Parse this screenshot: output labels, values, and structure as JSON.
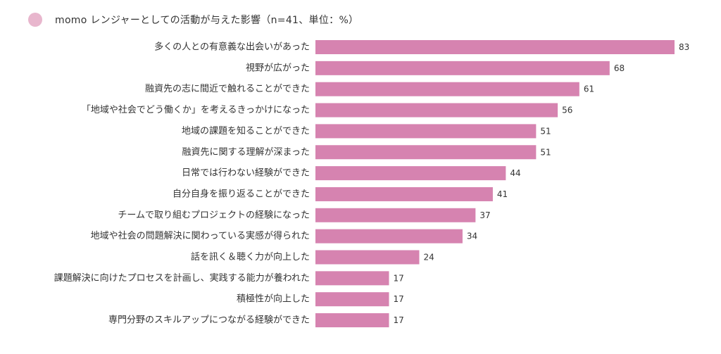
{
  "title": "momo レンジャーとしての活動が与えた影響（n=41、単位：%）",
  "colors": {
    "bar": "#d683b0",
    "dot": "#e8b6cd",
    "text": "#333333"
  },
  "chart_data": {
    "type": "bar",
    "orientation": "horizontal",
    "title": "momo レンジャーとしての活動が与えた影響（n=41、単位：%）",
    "xlabel": "",
    "ylabel": "",
    "xlim": [
      0,
      83
    ],
    "grid": false,
    "categories": [
      "多くの人との有意義な出会いがあった",
      "視野が広がった",
      "融資先の志に間近で触れることができた",
      "「地域や社会でどう働くか」を考えるきっかけになった",
      "地域の課題を知ることができた",
      "融資先に関する理解が深まった",
      "日常では行わない経験ができた",
      "自分自身を振り返ることができた",
      "チームで取り組むプロジェクトの経験になった",
      "地域や社会の問題解決に関わっている実感が得られた",
      "話を訊く＆聴く力が向上した",
      "課題解決に向けたプロセスを計画し、実践する能力が養われた",
      "積極性が向上した",
      "専門分野のスキルアップにつながる経験ができた"
    ],
    "values": [
      83,
      68,
      61,
      56,
      51,
      51,
      44,
      41,
      37,
      34,
      24,
      17,
      17,
      17
    ]
  }
}
